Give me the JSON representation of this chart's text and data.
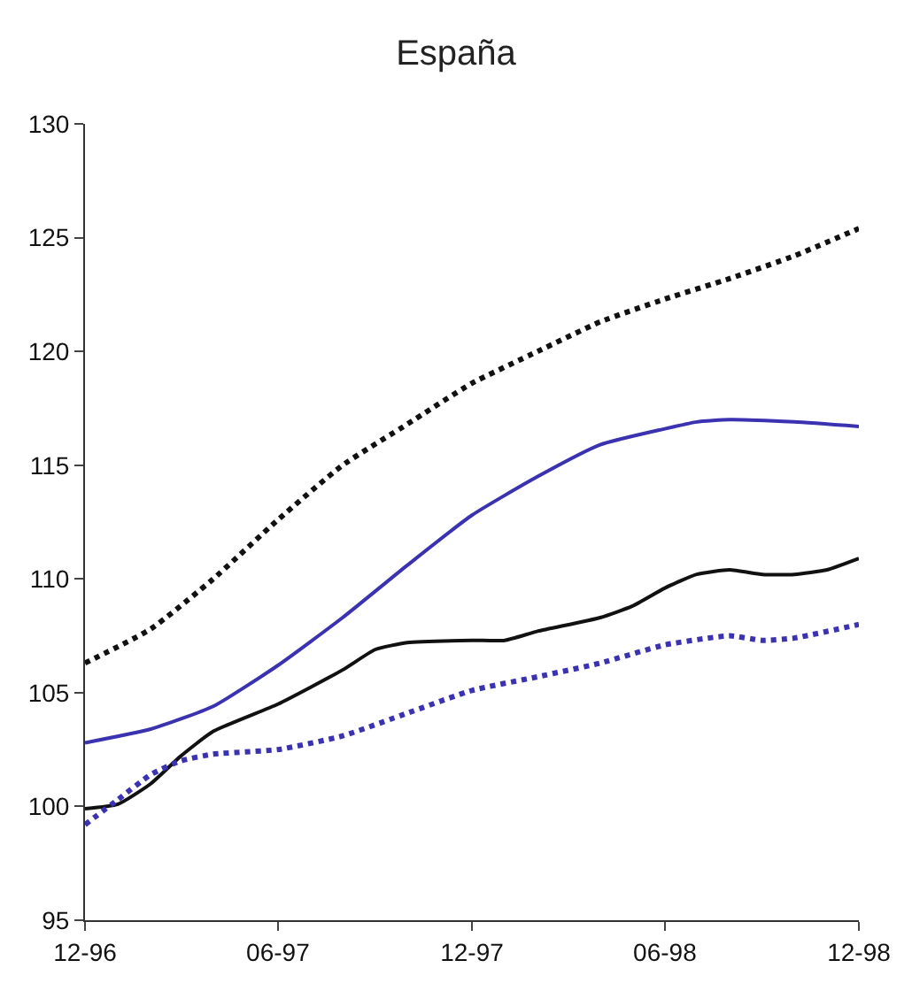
{
  "chart_data": {
    "type": "line",
    "title": "España",
    "xlim": [
      "1996-12",
      "1998-12"
    ],
    "xticks": [
      {
        "value": "1996-12",
        "label": "12-96"
      },
      {
        "value": "1997-06",
        "label": "06-97"
      },
      {
        "value": "1997-12",
        "label": "12-97"
      },
      {
        "value": "1998-06",
        "label": "06-98"
      },
      {
        "value": "1998-12",
        "label": "12-98"
      }
    ],
    "ylim": [
      95,
      130
    ],
    "yticks": [
      95,
      100,
      105,
      110,
      115,
      120,
      125,
      130
    ],
    "legend": false,
    "marker": "none",
    "series": [
      {
        "color": "#111111",
        "line_style": "dotted",
        "x": [
          "1996-12",
          "1997-02",
          "1997-04",
          "1997-06",
          "1997-08",
          "1997-10",
          "1997-12",
          "1998-02",
          "1998-04",
          "1998-06",
          "1998-08",
          "1998-10",
          "1998-12"
        ],
        "values": [
          106.3,
          107.8,
          110,
          112.6,
          115,
          116.8,
          118.6,
          120,
          121.3,
          122.3,
          123.2,
          124.2,
          125.4
        ]
      },
      {
        "color": "#3a32b0",
        "line_style": "solid",
        "x": [
          "1996-12",
          "1997-02",
          "1997-04",
          "1997-06",
          "1997-08",
          "1997-10",
          "1997-12",
          "1998-02",
          "1998-04",
          "1998-06",
          "1998-07",
          "1998-08",
          "1998-10",
          "1998-12"
        ],
        "values": [
          102.8,
          103.4,
          104.4,
          106.2,
          108.3,
          110.6,
          112.8,
          114.5,
          115.9,
          116.6,
          116.9,
          117,
          116.9,
          116.7
        ]
      },
      {
        "color": "#111111",
        "line_style": "solid",
        "x": [
          "1996-12",
          "1997-01",
          "1997-02",
          "1997-03",
          "1997-04",
          "1997-06",
          "1997-08",
          "1997-09",
          "1997-10",
          "1997-12",
          "1998-01",
          "1998-02",
          "1998-04",
          "1998-05",
          "1998-06",
          "1998-07",
          "1998-08",
          "1998-09",
          "1998-10",
          "1998-11",
          "1998-12"
        ],
        "values": [
          99.9,
          100.1,
          101,
          102.2,
          103.3,
          104.5,
          106,
          106.9,
          107.2,
          107.3,
          107.3,
          107.7,
          108.3,
          108.8,
          109.6,
          110.2,
          110.4,
          110.2,
          110.2,
          110.4,
          110.9
        ]
      },
      {
        "color": "#3a32b0",
        "line_style": "dotted",
        "x": [
          "1996-12",
          "1997-01",
          "1997-02",
          "1997-03",
          "1997-04",
          "1997-06",
          "1997-08",
          "1997-10",
          "1997-12",
          "1998-02",
          "1998-04",
          "1998-06",
          "1998-08",
          "1998-09",
          "1998-10",
          "1998-12"
        ],
        "values": [
          99.2,
          100.3,
          101.4,
          102,
          102.3,
          102.5,
          103.1,
          104.1,
          105.1,
          105.7,
          106.3,
          107.1,
          107.5,
          107.3,
          107.4,
          108
        ]
      }
    ]
  }
}
